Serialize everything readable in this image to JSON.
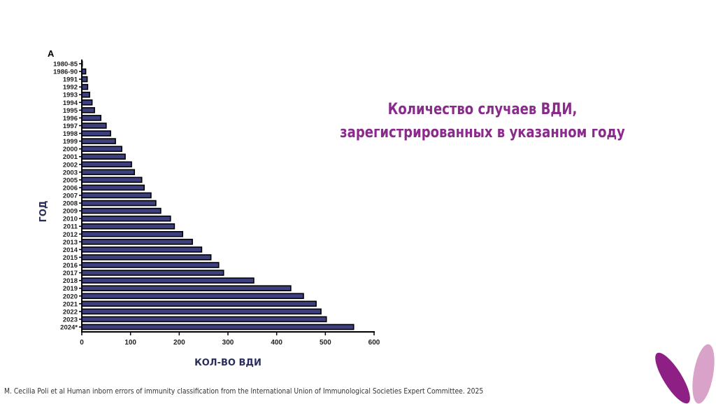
{
  "chart_data": {
    "type": "bar",
    "orientation": "horizontal",
    "panel_label": "A",
    "title": "Количество случаев ВДИ, зарегистрированных в указанном году",
    "xlabel": "КОЛ-ВО ВДИ",
    "ylabel": "ГОД",
    "xlim": [
      0,
      600
    ],
    "xticks": [
      0,
      100,
      200,
      300,
      400,
      500,
      600
    ],
    "categories": [
      "1980-85",
      "1986-90",
      "1991",
      "1992",
      "1993",
      "1994",
      "1995",
      "1996",
      "1997",
      "1998",
      "1999",
      "2000",
      "2001",
      "2002",
      "2003",
      "2005",
      "2006",
      "2007",
      "2008",
      "2009",
      "2010",
      "2011",
      "2012",
      "2013",
      "2014",
      "2015",
      "2016",
      "2017",
      "2018",
      "2019",
      "2020",
      "2021",
      "2022",
      "2023",
      "2024*"
    ],
    "values": [
      1,
      8,
      11,
      12,
      16,
      21,
      26,
      39,
      50,
      59,
      69,
      82,
      89,
      102,
      108,
      123,
      128,
      142,
      152,
      162,
      182,
      190,
      207,
      227,
      246,
      265,
      281,
      291,
      353,
      429,
      455,
      481,
      491,
      502,
      558
    ],
    "bar_color": "#3d3f7e",
    "grid": false
  },
  "slide": {
    "title_line1": "Количество случаев ВДИ,",
    "title_line2": "зарегистрированных в указанном году",
    "footer": "M. Cecilia Poli et al Human inborn errors of immunity classification from the International Union of Immunological Societies Expert Committee.  2025",
    "accent": "#8a2a8c"
  }
}
